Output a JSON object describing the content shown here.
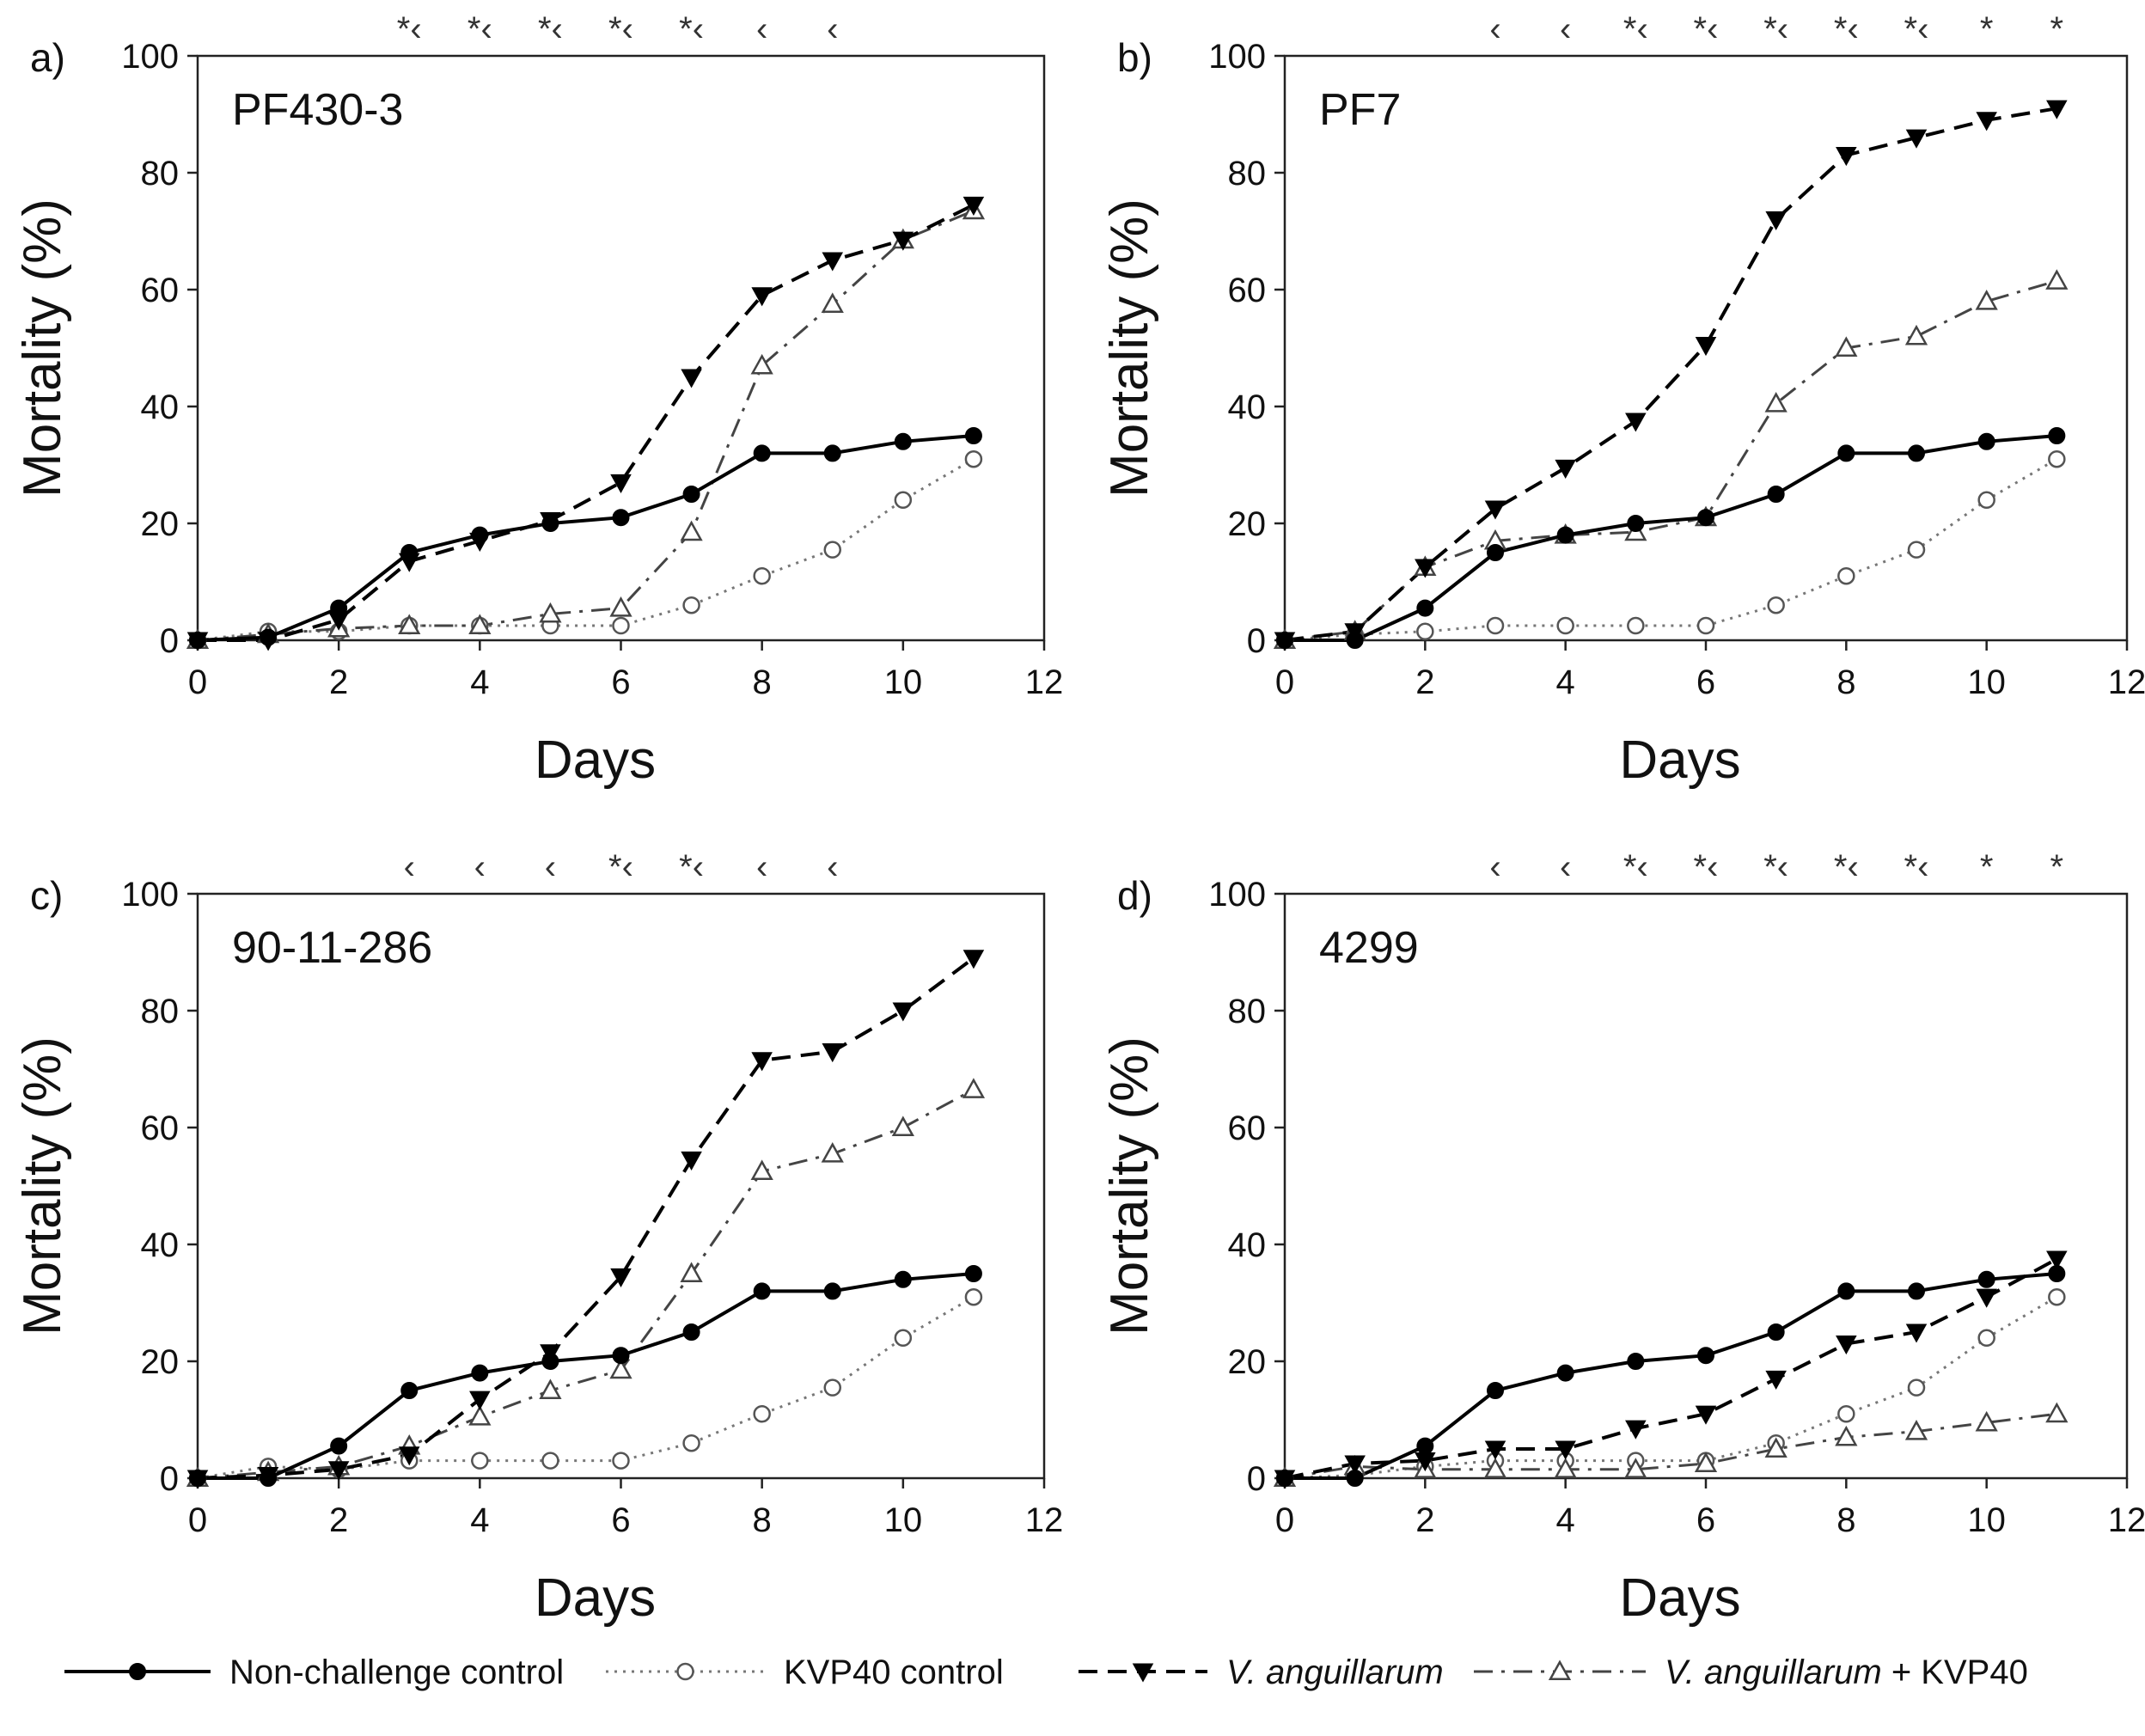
{
  "chart_data": [
    {
      "type": "line",
      "panel_label": "a)",
      "title": "PF430-3",
      "xlabel": "Days",
      "ylabel": "Mortality (%)",
      "xlim": [
        0,
        12
      ],
      "ylim": [
        0,
        100
      ],
      "xticks": [
        0,
        2,
        4,
        6,
        8,
        10,
        12
      ],
      "yticks": [
        0,
        20,
        40,
        60,
        80,
        100
      ],
      "x": [
        0,
        1,
        2,
        3,
        4,
        5,
        6,
        7,
        8,
        9,
        10,
        11
      ],
      "series": [
        {
          "name": "Non-challenge control",
          "values": [
            0,
            0.5,
            5.5,
            15,
            18,
            20,
            21,
            25,
            32,
            32,
            34,
            35
          ]
        },
        {
          "name": "KVP40 control",
          "values": [
            0,
            1.5,
            1.5,
            2.5,
            2.5,
            2.5,
            2.5,
            6,
            11,
            15.5,
            24,
            31
          ]
        },
        {
          "name": "V. anguillarum",
          "values": [
            0,
            0,
            3.5,
            13.5,
            17,
            20.5,
            27,
            45,
            59,
            65,
            68.5,
            74.5
          ]
        },
        {
          "name": "V. anguillarum + KVP40",
          "values": [
            0,
            1,
            2,
            2.5,
            2.5,
            4.5,
            5.5,
            18.5,
            47,
            57.5,
            68.5,
            73.5
          ]
        }
      ],
      "significance": [
        {
          "day": 3,
          "mark": "*‹"
        },
        {
          "day": 4,
          "mark": "*‹"
        },
        {
          "day": 5,
          "mark": "*‹"
        },
        {
          "day": 6,
          "mark": "*‹"
        },
        {
          "day": 7,
          "mark": "*‹"
        },
        {
          "day": 8,
          "mark": "‹"
        },
        {
          "day": 9,
          "mark": "‹"
        }
      ]
    },
    {
      "type": "line",
      "panel_label": "b)",
      "title": "PF7",
      "xlabel": "Days",
      "ylabel": "Mortality (%)",
      "xlim": [
        0,
        12
      ],
      "ylim": [
        0,
        100
      ],
      "xticks": [
        0,
        2,
        4,
        6,
        8,
        10,
        12
      ],
      "yticks": [
        0,
        20,
        40,
        60,
        80,
        100
      ],
      "x": [
        0,
        1,
        2,
        3,
        4,
        5,
        6,
        7,
        8,
        9,
        10,
        11
      ],
      "series": [
        {
          "name": "Non-challenge control",
          "values": [
            0,
            0,
            5.5,
            15,
            18,
            20,
            21,
            25,
            32,
            32,
            34,
            35
          ]
        },
        {
          "name": "KVP40 control",
          "values": [
            0,
            1,
            1.5,
            2.5,
            2.5,
            2.5,
            2.5,
            6,
            11,
            15.5,
            24,
            31
          ]
        },
        {
          "name": "V. anguillarum",
          "values": [
            0,
            1.5,
            12.5,
            22.5,
            29.5,
            37.5,
            50.5,
            72,
            83,
            86,
            89,
            91
          ]
        },
        {
          "name": "V. anguillarum + KVP40",
          "values": [
            0,
            1.5,
            12.5,
            17,
            18,
            18.5,
            21,
            40.5,
            50,
            52,
            58,
            61.5
          ]
        }
      ],
      "significance": [
        {
          "day": 3,
          "mark": "‹"
        },
        {
          "day": 4,
          "mark": "‹"
        },
        {
          "day": 5,
          "mark": "*‹"
        },
        {
          "day": 6,
          "mark": "*‹"
        },
        {
          "day": 7,
          "mark": "*‹"
        },
        {
          "day": 8,
          "mark": "*‹"
        },
        {
          "day": 9,
          "mark": "*‹"
        },
        {
          "day": 10,
          "mark": "*"
        },
        {
          "day": 11,
          "mark": "*"
        }
      ]
    },
    {
      "type": "line",
      "panel_label": "c)",
      "title": "90-11-286",
      "xlabel": "Days",
      "ylabel": "Mortality (%)",
      "xlim": [
        0,
        12
      ],
      "ylim": [
        0,
        100
      ],
      "xticks": [
        0,
        2,
        4,
        6,
        8,
        10,
        12
      ],
      "yticks": [
        0,
        20,
        40,
        60,
        80,
        100
      ],
      "x": [
        0,
        1,
        2,
        3,
        4,
        5,
        6,
        7,
        8,
        9,
        10,
        11
      ],
      "series": [
        {
          "name": "Non-challenge control",
          "values": [
            0,
            0,
            5.5,
            15,
            18,
            20,
            21,
            25,
            32,
            32,
            34,
            35
          ]
        },
        {
          "name": "KVP40 control",
          "values": [
            0,
            2,
            1.5,
            3,
            3,
            3,
            3,
            6,
            11,
            15.5,
            24,
            31
          ]
        },
        {
          "name": "V. anguillarum",
          "values": [
            0,
            0.5,
            1.5,
            4,
            13.5,
            21.5,
            34.5,
            54.5,
            71.5,
            73,
            80,
            89
          ]
        },
        {
          "name": "V. anguillarum + KVP40",
          "values": [
            0,
            1,
            2,
            5.5,
            10.5,
            15,
            18.5,
            35,
            52.5,
            55.5,
            60,
            66.5
          ]
        }
      ],
      "significance": [
        {
          "day": 3,
          "mark": "‹"
        },
        {
          "day": 4,
          "mark": "‹"
        },
        {
          "day": 5,
          "mark": "‹"
        },
        {
          "day": 6,
          "mark": "*‹"
        },
        {
          "day": 7,
          "mark": "*‹"
        },
        {
          "day": 8,
          "mark": "‹"
        },
        {
          "day": 9,
          "mark": "‹"
        }
      ]
    },
    {
      "type": "line",
      "panel_label": "d)",
      "title": "4299",
      "xlabel": "Days",
      "ylabel": "Mortality (%)",
      "xlim": [
        0,
        12
      ],
      "ylim": [
        0,
        100
      ],
      "xticks": [
        0,
        2,
        4,
        6,
        8,
        10,
        12
      ],
      "yticks": [
        0,
        20,
        40,
        60,
        80,
        100
      ],
      "x": [
        0,
        1,
        2,
        3,
        4,
        5,
        6,
        7,
        8,
        9,
        10,
        11
      ],
      "series": [
        {
          "name": "Non-challenge control",
          "values": [
            0,
            0,
            5.5,
            15,
            18,
            20,
            21,
            25,
            32,
            32,
            34,
            35
          ]
        },
        {
          "name": "KVP40 control",
          "values": [
            0,
            0.5,
            2,
            3,
            3,
            3,
            3,
            6,
            11,
            15.5,
            24,
            31
          ]
        },
        {
          "name": "V. anguillarum",
          "values": [
            0,
            2.5,
            3,
            5,
            5,
            8.5,
            11,
            17,
            23,
            25,
            31,
            37.5
          ]
        },
        {
          "name": "V. anguillarum + KVP40",
          "values": [
            0,
            2,
            1.5,
            1.5,
            1.5,
            1.5,
            2.5,
            5,
            7,
            8,
            9.5,
            11
          ]
        }
      ],
      "significance": [
        {
          "day": 3,
          "mark": "‹"
        },
        {
          "day": 4,
          "mark": "‹"
        },
        {
          "day": 5,
          "mark": "*‹"
        },
        {
          "day": 6,
          "mark": "*‹"
        },
        {
          "day": 7,
          "mark": "*‹"
        },
        {
          "day": 8,
          "mark": "*‹"
        },
        {
          "day": 9,
          "mark": "*‹"
        },
        {
          "day": 10,
          "mark": "*"
        },
        {
          "day": 11,
          "mark": "*"
        }
      ]
    }
  ],
  "legend": {
    "placement": "bottom",
    "entries": [
      {
        "text": "Non-challenge control",
        "italic_part": "",
        "plain_part": ""
      },
      {
        "text": "KVP40 control",
        "italic_part": "",
        "plain_part": ""
      },
      {
        "text": "",
        "italic_part": "V. anguillarum",
        "plain_part": ""
      },
      {
        "text": "",
        "italic_part": "V. anguillarum",
        "plain_part": " + KVP40"
      }
    ]
  },
  "series_styles": [
    {
      "name": "Non-challenge control",
      "line": "solid",
      "marker": "filled-circle",
      "color": "#000000"
    },
    {
      "name": "KVP40 control",
      "line": "dotted",
      "marker": "open-circle",
      "color": "#777777"
    },
    {
      "name": "V. anguillarum",
      "line": "dashed",
      "marker": "filled-triangle-down",
      "color": "#000000"
    },
    {
      "name": "V. anguillarum + KVP40",
      "line": "dash-dot",
      "marker": "open-triangle-up",
      "color": "#444444"
    }
  ]
}
